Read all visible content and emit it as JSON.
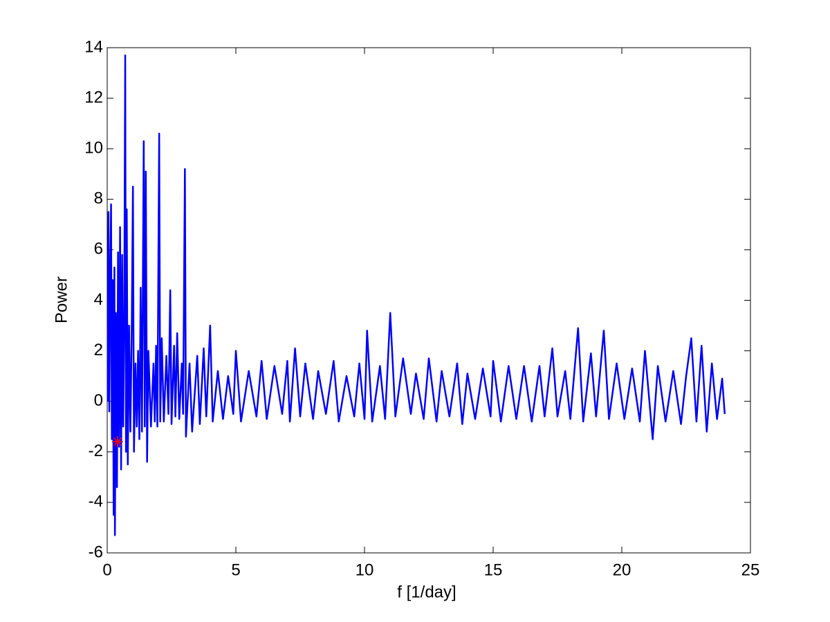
{
  "chart_data": {
    "type": "line",
    "xlabel": "f [1/day]",
    "ylabel": "Power",
    "xlim": [
      0,
      25
    ],
    "xticks": [
      0,
      5,
      10,
      15,
      20,
      25
    ],
    "ylim": [
      -6,
      14
    ],
    "yticks": [
      -6,
      -4,
      -2,
      0,
      2,
      4,
      6,
      8,
      10,
      12,
      14
    ],
    "color": "#0000ff",
    "x": [
      0.02,
      0.05,
      0.08,
      0.12,
      0.15,
      0.18,
      0.22,
      0.25,
      0.28,
      0.3,
      0.34,
      0.38,
      0.42,
      0.46,
      0.5,
      0.54,
      0.58,
      0.62,
      0.66,
      0.7,
      0.73,
      0.76,
      0.8,
      0.85,
      0.9,
      0.95,
      1.0,
      1.04,
      1.1,
      1.15,
      1.2,
      1.25,
      1.3,
      1.35,
      1.42,
      1.46,
      1.5,
      1.55,
      1.6,
      1.7,
      1.8,
      1.85,
      1.9,
      1.95,
      2.02,
      2.06,
      2.12,
      2.2,
      2.3,
      2.38,
      2.45,
      2.5,
      2.6,
      2.65,
      2.72,
      2.8,
      2.9,
      2.95,
      3.02,
      3.06,
      3.2,
      3.3,
      3.5,
      3.6,
      3.75,
      3.85,
      4.0,
      4.1,
      4.3,
      4.5,
      4.7,
      4.9,
      5.0,
      5.2,
      5.5,
      5.8,
      6.0,
      6.2,
      6.5,
      6.8,
      7.0,
      7.1,
      7.3,
      7.5,
      7.7,
      8.0,
      8.2,
      8.5,
      8.8,
      9.0,
      9.3,
      9.6,
      9.8,
      10.0,
      10.1,
      10.3,
      10.6,
      10.8,
      11.0,
      11.2,
      11.5,
      11.8,
      12.0,
      12.3,
      12.5,
      12.8,
      13.0,
      13.3,
      13.6,
      13.8,
      14.0,
      14.3,
      14.6,
      14.9,
      15.0,
      15.3,
      15.6,
      15.9,
      16.2,
      16.5,
      16.8,
      17.0,
      17.3,
      17.5,
      17.8,
      18.0,
      18.3,
      18.5,
      18.8,
      19.0,
      19.3,
      19.5,
      19.8,
      20.1,
      20.4,
      20.7,
      20.9,
      21.2,
      21.4,
      21.7,
      22.0,
      22.3,
      22.5,
      22.7,
      22.9,
      23.1,
      23.3,
      23.5,
      23.7,
      23.9,
      24.0
    ],
    "values": [
      0,
      7.5,
      -0.4,
      5.2,
      7.8,
      -1.5,
      4.8,
      -4.5,
      5.3,
      -5.3,
      3.5,
      -3.4,
      5.9,
      -1.8,
      6.9,
      -2.7,
      5.8,
      -1.0,
      3.0,
      13.7,
      -2.0,
      7.6,
      -2.5,
      3.0,
      -1.2,
      2.5,
      8.5,
      -2.0,
      1.5,
      -1.0,
      2.0,
      -1.5,
      4.5,
      -1.2,
      10.3,
      -1.0,
      9.1,
      -2.4,
      2.0,
      -1.0,
      1.5,
      -0.8,
      2.2,
      -1.0,
      10.6,
      -0.8,
      2.5,
      -0.8,
      1.8,
      -0.5,
      4.4,
      -0.9,
      2.2,
      -0.6,
      2.7,
      -0.7,
      1.5,
      -0.5,
      9.2,
      -1.4,
      1.5,
      -1.2,
      1.8,
      -0.9,
      2.1,
      -0.6,
      3.0,
      -0.8,
      1.2,
      -0.7,
      1.0,
      -0.5,
      2.0,
      -0.8,
      1.2,
      -0.6,
      1.6,
      -0.7,
      1.4,
      -0.5,
      1.6,
      -0.8,
      2.1,
      -0.6,
      1.5,
      -0.7,
      1.2,
      -0.5,
      1.6,
      -0.8,
      1.0,
      -0.6,
      1.5,
      -0.7,
      2.8,
      -0.8,
      1.4,
      -0.7,
      3.5,
      -0.6,
      1.7,
      -0.5,
      1.1,
      -0.7,
      1.7,
      -0.8,
      1.2,
      -0.6,
      1.5,
      -0.9,
      1.1,
      -0.7,
      1.3,
      -0.6,
      1.6,
      -0.8,
      1.4,
      -0.7,
      1.4,
      -0.8,
      1.4,
      -0.6,
      2.1,
      -0.6,
      1.2,
      -0.7,
      2.9,
      -0.8,
      1.9,
      -0.6,
      2.8,
      -0.7,
      1.5,
      -0.7,
      1.3,
      -0.8,
      2.0,
      -1.5,
      1.4,
      -0.8,
      1.2,
      -0.9,
      1.0,
      2.5,
      -0.8,
      2.2,
      -1.2,
      1.5,
      -0.7,
      0.9,
      -0.5
    ],
    "marker": {
      "x": 0.4,
      "y": -1.6,
      "color": "#ff0000"
    }
  }
}
